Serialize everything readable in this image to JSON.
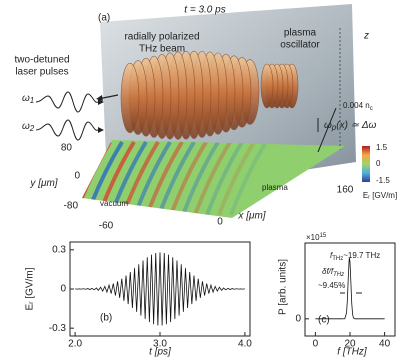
{
  "panel_a": {
    "label": "(a)",
    "time": "t = 3.0 ps",
    "beam": [
      "radially polarized",
      "THz beam"
    ],
    "oscillator": [
      "plasma",
      "oscillator"
    ],
    "lasers": [
      "two-detuned",
      "laser pulses"
    ],
    "omega1": {
      "text": "ω",
      "sub": "1"
    },
    "omega2": {
      "text": "ω",
      "sub": "2"
    },
    "z_label": "z",
    "density": {
      "text": "0.004 n",
      "sub": "c"
    },
    "resonance": {
      "text": "ω",
      "sub": "p",
      "rest": "(x) ≃ Δω"
    },
    "y_label": "y [μm]",
    "y_ticks": [
      "80",
      "0",
      "-80"
    ],
    "x_label": "x [μm]",
    "x_ticks": [
      "-60",
      "0",
      "160"
    ],
    "colorbar_ticks": [
      "1.5",
      "0",
      "-1.5"
    ],
    "colorbar_label": "Eᵣ [GV/m]",
    "vacuum": "vacuum",
    "plasma": "plasma"
  },
  "chart_data": [
    {
      "type": "line",
      "annotation": "(b)",
      "xlabel": "t [ps]",
      "ylabel": "Eᵣ [GV/m]",
      "color": "#111111",
      "x": [
        2,
        2.025,
        2.05,
        2.075,
        2.1,
        2.125,
        2.15,
        2.175,
        2.2,
        2.225,
        2.25,
        2.275,
        2.3,
        2.325,
        2.35,
        2.375,
        2.4,
        2.425,
        2.45,
        2.475,
        2.5,
        2.525,
        2.55,
        2.575,
        2.6,
        2.625,
        2.65,
        2.675,
        2.7,
        2.725,
        2.75,
        2.775,
        2.8,
        2.825,
        2.85,
        2.875,
        2.9,
        2.925,
        2.95,
        2.975,
        3,
        3.025,
        3.05,
        3.075,
        3.1,
        3.125,
        3.15,
        3.175,
        3.2,
        3.225,
        3.25,
        3.275,
        3.3,
        3.325,
        3.35,
        3.375,
        3.4,
        3.425,
        3.45,
        3.475,
        3.5,
        3.525,
        3.55,
        3.575,
        3.6,
        3.625,
        3.65,
        3.675,
        3.7,
        3.725,
        3.75,
        3.775,
        3.8,
        3.825,
        3.85,
        3.875,
        3.9,
        3.925,
        3.95,
        3.975,
        4
      ],
      "values": [
        0.001,
        -0.001,
        0.001,
        -0.001,
        0.002,
        -0.002,
        0.003,
        -0.004,
        0.005,
        -0.007,
        0.008,
        -0.01,
        0.013,
        -0.016,
        0.02,
        -0.024,
        0.03,
        -0.035,
        0.042,
        -0.05,
        0.059,
        -0.068,
        0.079,
        -0.091,
        0.103,
        -0.116,
        0.13,
        -0.145,
        0.16,
        -0.175,
        0.189,
        -0.204,
        0.218,
        -0.231,
        0.243,
        -0.254,
        0.263,
        -0.27,
        0.276,
        -0.279,
        0.28,
        -0.279,
        0.276,
        -0.27,
        0.263,
        -0.254,
        0.243,
        -0.231,
        0.218,
        -0.204,
        0.189,
        -0.175,
        0.16,
        -0.145,
        0.13,
        -0.116,
        0.103,
        -0.091,
        0.079,
        -0.068,
        0.059,
        -0.05,
        0.042,
        -0.035,
        0.03,
        -0.024,
        0.02,
        -0.016,
        0.013,
        -0.01,
        0.008,
        -0.007,
        0.005,
        -0.004,
        0.003,
        -0.002,
        0.002,
        -0.001,
        0.001,
        -0.001,
        0.001
      ],
      "xlim": [
        1.94,
        4.06
      ],
      "ylim": [
        -0.36,
        0.36
      ],
      "xticks": [
        {
          "value": 2,
          "label": "2.0"
        },
        {
          "value": 3,
          "label": "3.0"
        },
        {
          "value": 4,
          "label": "4.0"
        }
      ],
      "yticks": [
        0.3,
        0,
        -0.3
      ]
    },
    {
      "type": "line",
      "annotation": "(c)",
      "xlabel": "f [THz]",
      "ylabel": "P [arb. units]",
      "multiplier": {
        "text": "×10",
        "sup": "15"
      },
      "peak": {
        "text": "f",
        "sub": "THz",
        "rest": "~19.7 THz"
      },
      "width": {
        "text": "δf/f",
        "sub": "THz"
      },
      "width_value": "~9.45%",
      "color": "#111111",
      "x": [
        0,
        10,
        15,
        17,
        18,
        18.5,
        19,
        19.5,
        19.7,
        20,
        20.5,
        21,
        21.5,
        22,
        23,
        25,
        30,
        40
      ],
      "values": [
        0,
        0,
        0,
        0.002,
        0.083,
        0.268,
        0.574,
        0.823,
        0.85,
        0.791,
        0.509,
        0.219,
        0.063,
        0.012,
        0,
        0,
        0,
        0
      ],
      "xlim": [
        -6,
        46
      ],
      "ylim": [
        -0.24,
        1.06
      ],
      "xticks": [
        0,
        20,
        40
      ],
      "yticks": [
        0
      ]
    }
  ]
}
